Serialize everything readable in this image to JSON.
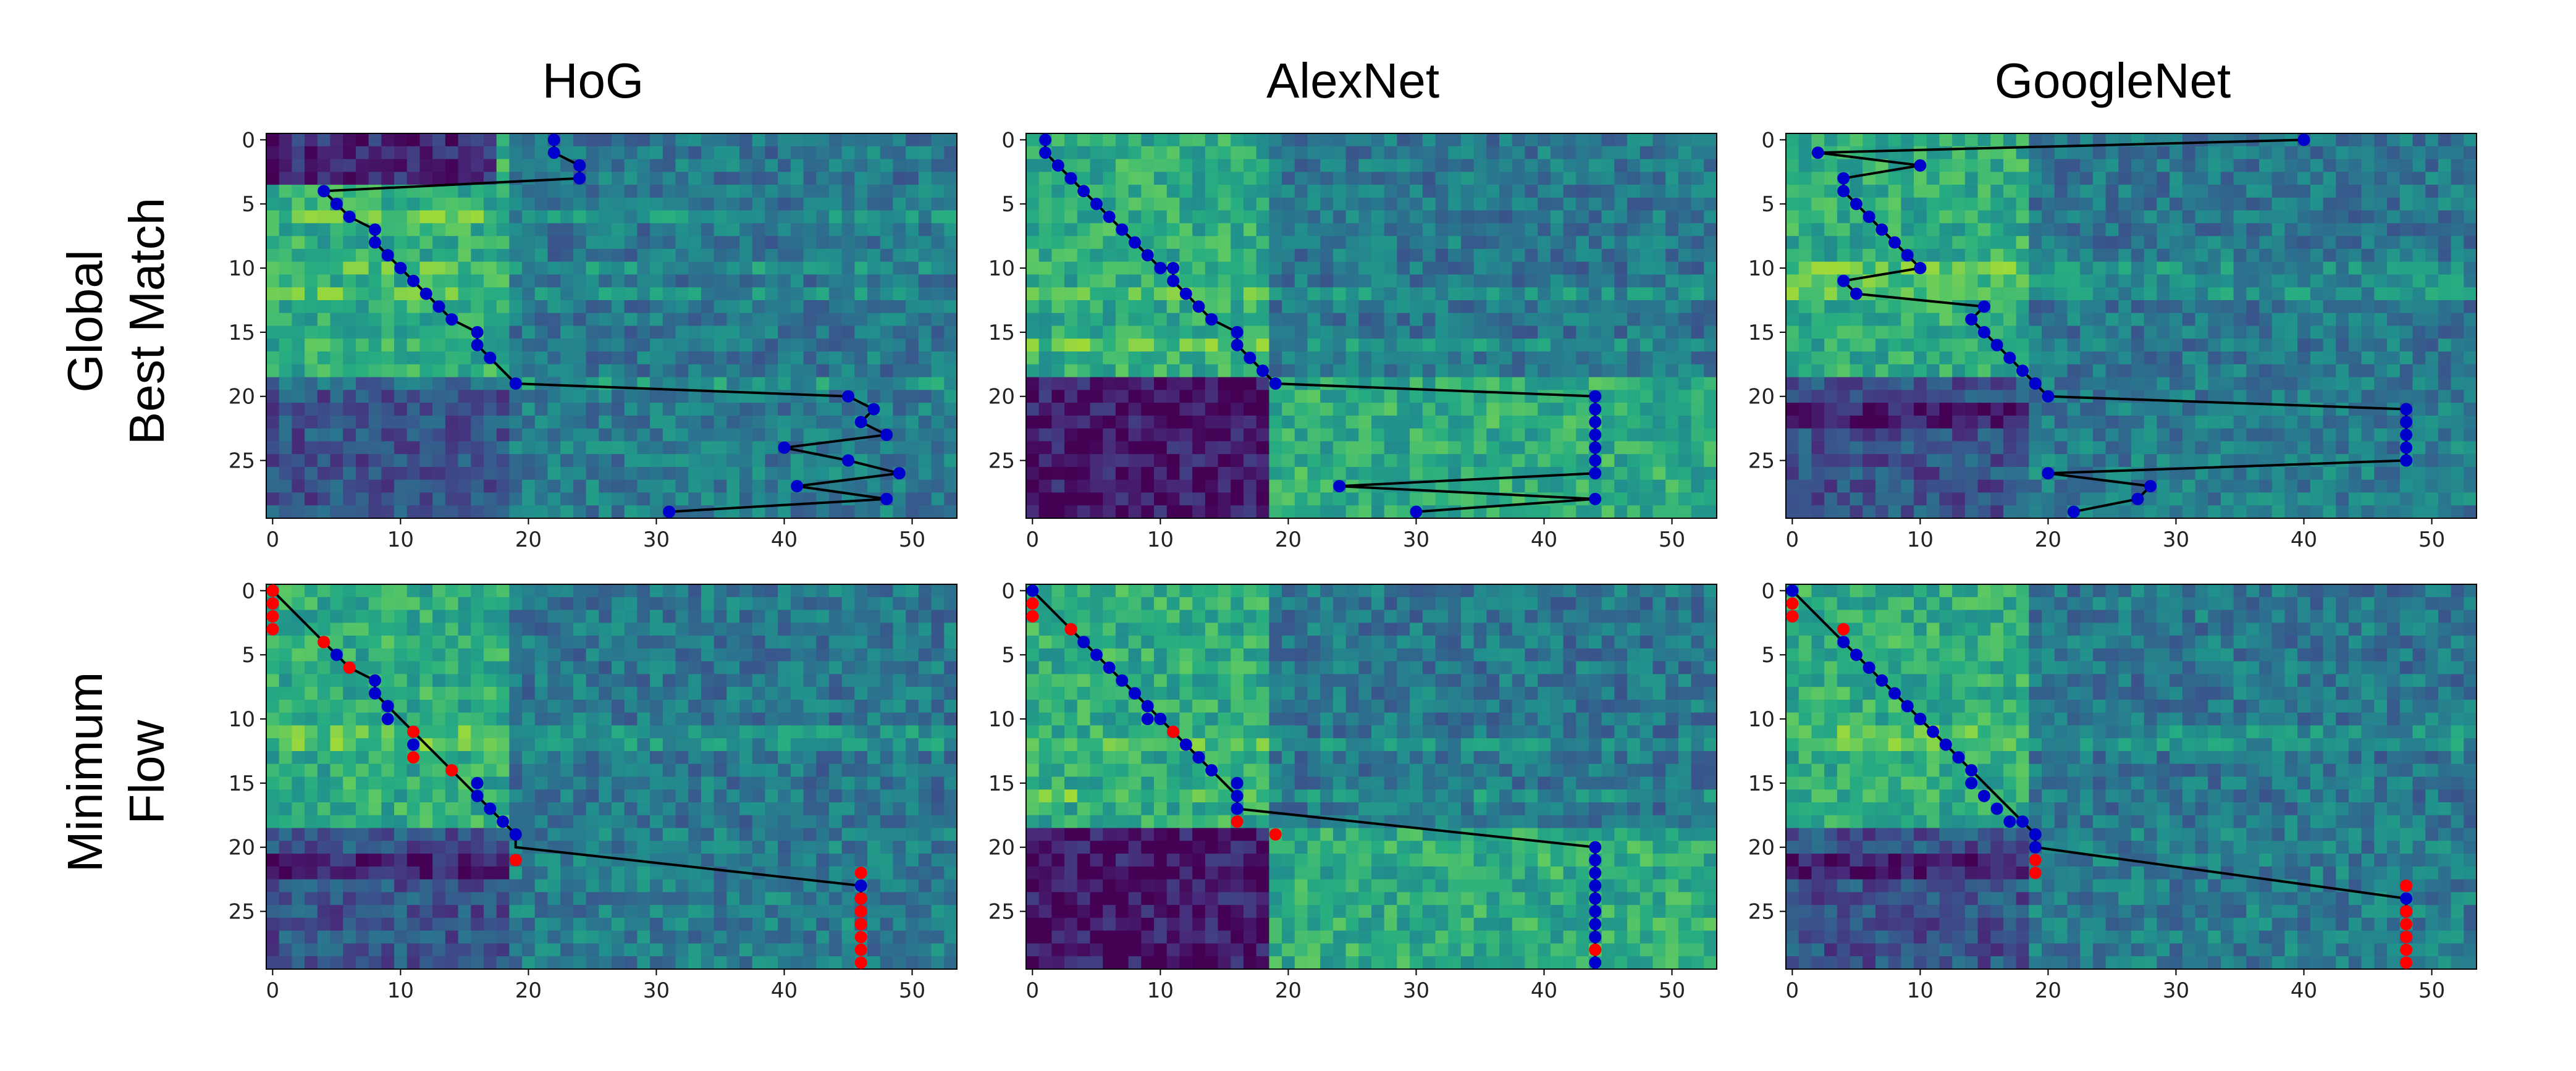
{
  "figure": {
    "column_titles": [
      "HoG",
      "AlexNet",
      "GoogleNet"
    ],
    "row_titles": [
      [
        "Global",
        "Best Match"
      ],
      [
        "Minimum",
        "Flow"
      ]
    ]
  },
  "style": {
    "path_color": "#000000",
    "blue_marker": "#0000cc",
    "red_marker": "#ff0000",
    "colormap": "viridis"
  },
  "chart_data": [
    {
      "type": "heatmap",
      "row": "Global Best Match",
      "column": "HoG",
      "xlim": [
        0,
        53
      ],
      "ylim": [
        29,
        0
      ],
      "xticks": [
        0,
        10,
        20,
        30,
        40,
        50
      ],
      "yticks": [
        0,
        5,
        10,
        15,
        20,
        25
      ],
      "split": {
        "row": 19,
        "col": 19
      },
      "bands": {
        "dark_rows": [],
        "bright_rows": [
          6,
          10,
          12,
          19
        ]
      },
      "matched_path": {
        "x": [
          22,
          22,
          24,
          24,
          4,
          5,
          6,
          8,
          8,
          9,
          10,
          11,
          12,
          13,
          14,
          16,
          16,
          17,
          19,
          45,
          47,
          46,
          48,
          40,
          45,
          49,
          41,
          48,
          31
        ],
        "y": [
          0,
          1,
          2,
          3,
          4,
          5,
          6,
          7,
          8,
          9,
          10,
          11,
          12,
          13,
          14,
          15,
          16,
          17,
          19,
          20,
          21,
          22,
          23,
          24,
          25,
          26,
          27,
          28,
          29
        ]
      },
      "blue_points": {
        "x": [
          22,
          22,
          24,
          24,
          4,
          5,
          6,
          8,
          8,
          9,
          10,
          11,
          12,
          13,
          14,
          16,
          16,
          17,
          19,
          45,
          47,
          46,
          48,
          40,
          45,
          49,
          41,
          48,
          31
        ],
        "y": [
          0,
          1,
          2,
          3,
          4,
          5,
          6,
          7,
          8,
          9,
          10,
          11,
          12,
          13,
          14,
          15,
          16,
          17,
          19,
          20,
          21,
          22,
          23,
          24,
          25,
          26,
          27,
          28,
          29
        ]
      },
      "red_points": {
        "x": [],
        "y": []
      }
    },
    {
      "type": "heatmap",
      "row": "Global Best Match",
      "column": "AlexNet",
      "xlim": [
        0,
        53
      ],
      "ylim": [
        29,
        0
      ],
      "xticks": [
        0,
        10,
        20,
        30,
        40,
        50
      ],
      "yticks": [
        0,
        5,
        10,
        15,
        20,
        25
      ],
      "split": {
        "row": 19,
        "col": 19
      },
      "bands": {
        "dark_rows": [],
        "bright_rows": [
          12,
          16
        ]
      },
      "matched_path": {
        "x": [
          1,
          1,
          2,
          3,
          4,
          5,
          6,
          7,
          8,
          9,
          10,
          11,
          11,
          12,
          13,
          14,
          16,
          16,
          17,
          18,
          19,
          44,
          44,
          44,
          44,
          44,
          44,
          44,
          24,
          44,
          30
        ],
        "y": [
          0,
          1,
          2,
          3,
          4,
          5,
          6,
          7,
          8,
          9,
          10,
          10,
          11,
          12,
          13,
          14,
          15,
          16,
          17,
          18,
          19,
          20,
          21,
          22,
          23,
          24,
          25,
          26,
          27,
          28,
          29
        ]
      },
      "blue_points": {
        "x": [
          1,
          1,
          2,
          3,
          4,
          5,
          6,
          7,
          8,
          9,
          10,
          11,
          11,
          12,
          13,
          14,
          16,
          16,
          17,
          18,
          19,
          44,
          44,
          44,
          44,
          44,
          44,
          44,
          24,
          44,
          30
        ],
        "y": [
          0,
          1,
          2,
          3,
          4,
          5,
          6,
          7,
          8,
          9,
          10,
          10,
          11,
          12,
          13,
          14,
          15,
          16,
          17,
          18,
          19,
          20,
          21,
          22,
          23,
          24,
          25,
          26,
          27,
          28,
          29
        ]
      },
      "red_points": {
        "x": [],
        "y": []
      }
    },
    {
      "type": "heatmap",
      "row": "Global Best Match",
      "column": "GoogleNet",
      "xlim": [
        0,
        53
      ],
      "ylim": [
        29,
        0
      ],
      "xticks": [
        0,
        10,
        20,
        30,
        40,
        50
      ],
      "yticks": [
        0,
        5,
        10,
        15,
        20,
        25
      ],
      "split": {
        "row": 19,
        "col": 19
      },
      "bands": {
        "dark_rows": [
          21,
          22
        ],
        "bright_rows": [
          10,
          11,
          12
        ]
      },
      "matched_path": {
        "x": [
          40,
          2,
          10,
          4,
          4,
          5,
          6,
          7,
          8,
          9,
          10,
          4,
          5,
          15,
          14,
          15,
          16,
          17,
          18,
          19,
          20,
          48,
          48,
          48,
          48,
          48,
          48,
          20,
          28,
          27,
          22
        ],
        "y": [
          0,
          1,
          2,
          3,
          4,
          5,
          6,
          7,
          8,
          9,
          10,
          11,
          12,
          13,
          14,
          15,
          16,
          17,
          18,
          19,
          20,
          21,
          22,
          23,
          24,
          25,
          25,
          26,
          27,
          28,
          29
        ]
      },
      "blue_points": {
        "x": [
          40,
          2,
          10,
          4,
          4,
          5,
          6,
          7,
          8,
          9,
          10,
          4,
          5,
          15,
          14,
          15,
          16,
          17,
          18,
          19,
          20,
          48,
          48,
          48,
          48,
          48,
          48,
          20,
          28,
          27,
          22
        ],
        "y": [
          0,
          1,
          2,
          3,
          4,
          5,
          6,
          7,
          8,
          9,
          10,
          11,
          12,
          13,
          14,
          15,
          16,
          17,
          18,
          19,
          20,
          21,
          22,
          23,
          24,
          25,
          25,
          26,
          27,
          28,
          29
        ]
      },
      "red_points": {
        "x": [],
        "y": []
      }
    },
    {
      "type": "heatmap",
      "row": "Minimum Flow",
      "column": "HoG",
      "xlim": [
        0,
        53
      ],
      "ylim": [
        29,
        0
      ],
      "xticks": [
        0,
        10,
        20,
        30,
        40,
        50
      ],
      "yticks": [
        0,
        5,
        10,
        15,
        20,
        25
      ],
      "split": {
        "row": 19,
        "col": 19
      },
      "bands": {
        "dark_rows": [
          21,
          22
        ],
        "bright_rows": [
          11,
          12
        ]
      },
      "matched_path": {
        "x": [
          0,
          4,
          5,
          6,
          8,
          8,
          9,
          10,
          11,
          12,
          13,
          14,
          15,
          16,
          16,
          17,
          18,
          19,
          19,
          46,
          46
        ],
        "y": [
          0,
          4,
          5,
          6,
          7,
          8,
          9,
          10,
          11,
          12,
          13,
          14,
          15,
          16,
          16,
          17,
          18,
          19,
          20,
          23,
          24
        ]
      },
      "blue_points": {
        "x": [
          0,
          4,
          5,
          8,
          8,
          9,
          9,
          11,
          16,
          16,
          17,
          18,
          19,
          46,
          46
        ],
        "y": [
          0,
          4,
          5,
          7,
          8,
          9,
          10,
          12,
          15,
          16,
          17,
          18,
          19,
          23,
          24
        ]
      },
      "red_points": {
        "x": [
          0,
          0,
          0,
          0,
          4,
          6,
          11,
          11,
          14,
          19,
          46,
          46,
          46,
          46,
          46,
          46,
          46
        ],
        "y": [
          0,
          1,
          2,
          3,
          4,
          6,
          11,
          13,
          14,
          21,
          22,
          25,
          26,
          27,
          28,
          29,
          24
        ]
      }
    },
    {
      "type": "heatmap",
      "row": "Minimum Flow",
      "column": "AlexNet",
      "xlim": [
        0,
        53
      ],
      "ylim": [
        29,
        0
      ],
      "xticks": [
        0,
        10,
        20,
        30,
        40,
        50
      ],
      "yticks": [
        0,
        5,
        10,
        15,
        20,
        25
      ],
      "split": {
        "row": 19,
        "col": 19
      },
      "bands": {
        "dark_rows": [],
        "bright_rows": [
          12,
          16
        ]
      },
      "matched_path": {
        "x": [
          0,
          1,
          2,
          3,
          4,
          5,
          6,
          7,
          8,
          9,
          10,
          11,
          12,
          13,
          14,
          15,
          16,
          16,
          44,
          44,
          44,
          44,
          44,
          44,
          44,
          44,
          44,
          44,
          44
        ],
        "y": [
          0,
          1,
          2,
          3,
          4,
          5,
          6,
          7,
          8,
          9,
          10,
          11,
          12,
          13,
          14,
          15,
          16,
          17,
          20,
          21,
          22,
          23,
          24,
          25,
          26,
          27,
          28,
          29,
          29
        ]
      },
      "blue_points": {
        "x": [
          0,
          3,
          4,
          5,
          6,
          7,
          8,
          9,
          9,
          10,
          12,
          13,
          14,
          16,
          16,
          16,
          44,
          44,
          44,
          44,
          44,
          44,
          44,
          44,
          44,
          44
        ],
        "y": [
          0,
          3,
          4,
          5,
          6,
          7,
          8,
          9,
          10,
          10,
          12,
          13,
          14,
          15,
          16,
          17,
          20,
          21,
          22,
          23,
          24,
          25,
          26,
          27,
          29,
          28
        ]
      },
      "red_points": {
        "x": [
          0,
          0,
          3,
          11,
          16,
          19,
          44
        ],
        "y": [
          1,
          2,
          3,
          11,
          18,
          19,
          28
        ]
      }
    },
    {
      "type": "heatmap",
      "row": "Minimum Flow",
      "column": "GoogleNet",
      "xlim": [
        0,
        53
      ],
      "ylim": [
        29,
        0
      ],
      "xticks": [
        0,
        10,
        20,
        30,
        40,
        50
      ],
      "yticks": [
        0,
        5,
        10,
        15,
        20,
        25
      ],
      "split": {
        "row": 19,
        "col": 19
      },
      "bands": {
        "dark_rows": [
          21,
          22
        ],
        "bright_rows": [
          11,
          12
        ]
      },
      "matched_path": {
        "x": [
          0,
          4,
          5,
          6,
          7,
          8,
          9,
          10,
          11,
          12,
          13,
          14,
          15,
          16,
          17,
          18,
          19,
          19,
          48,
          48,
          48
        ],
        "y": [
          0,
          4,
          5,
          6,
          7,
          8,
          9,
          10,
          11,
          12,
          13,
          14,
          15,
          16,
          17,
          18,
          19,
          20,
          24,
          25,
          25
        ]
      },
      "blue_points": {
        "x": [
          0,
          4,
          5,
          6,
          7,
          8,
          9,
          10,
          11,
          12,
          13,
          14,
          14,
          15,
          16,
          17,
          18,
          19,
          19,
          48,
          48
        ],
        "y": [
          0,
          4,
          5,
          6,
          7,
          8,
          9,
          10,
          11,
          12,
          13,
          14,
          15,
          16,
          17,
          18,
          18,
          19,
          20,
          24,
          25
        ]
      },
      "red_points": {
        "x": [
          0,
          0,
          4,
          19,
          19,
          48,
          48,
          48,
          48,
          48,
          48
        ],
        "y": [
          1,
          2,
          3,
          21,
          22,
          23,
          26,
          27,
          28,
          29,
          25
        ]
      }
    }
  ]
}
